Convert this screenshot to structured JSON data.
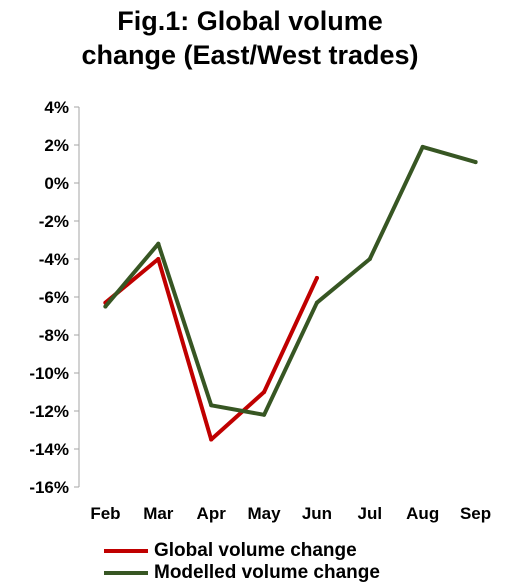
{
  "chart_data": {
    "type": "line",
    "title_line1": "Fig.1: Global volume",
    "title_line2": "change (East/West trades)",
    "categories": [
      "Feb",
      "Mar",
      "Apr",
      "May",
      "Jun",
      "Jul",
      "Aug",
      "Sep"
    ],
    "ylim": [
      -16,
      4
    ],
    "yticks": [
      4,
      2,
      0,
      -2,
      -4,
      -6,
      -8,
      -10,
      -12,
      -14,
      -16
    ],
    "ytick_labels": [
      "4%",
      "2%",
      "0%",
      "-2%",
      "-4%",
      "-6%",
      "-8%",
      "-10%",
      "-12%",
      "-14%",
      "-16%"
    ],
    "grid": false,
    "legend_position": "bottom",
    "series": [
      {
        "name": "Global volume change",
        "color": "#c00000",
        "values": [
          -6.3,
          -4.0,
          -13.5,
          -11.0,
          -5.0,
          null,
          null,
          null
        ]
      },
      {
        "name": "Modelled volume change",
        "color": "#375623",
        "values": [
          -6.5,
          -3.2,
          -11.7,
          -12.2,
          -6.3,
          -4.0,
          1.9,
          1.1
        ]
      }
    ]
  }
}
